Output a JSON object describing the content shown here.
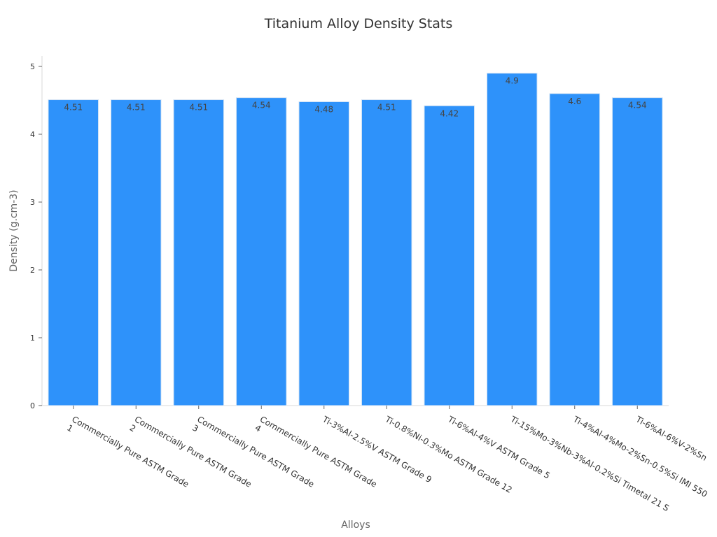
{
  "chart_data": {
    "type": "bar",
    "title": "Titanium Alloy Density Stats",
    "xlabel": "Alloys",
    "ylabel": "Density (g.cm-3)",
    "ylim": [
      0,
      5
    ],
    "yticks": [
      0,
      1,
      2,
      3,
      4,
      5
    ],
    "categories": [
      [
        "Commercially Pure ASTM Grade",
        "1"
      ],
      [
        "Commercially Pure ASTM Grade",
        "2"
      ],
      [
        "Commercially Pure ASTM Grade",
        "3"
      ],
      [
        "Commercially Pure ASTM Grade",
        "4"
      ],
      [
        "Ti-3%Al-2.5%V ASTM Grade 9"
      ],
      [
        "Ti-0.8%Ni-0.3%Mo ASTM Grade 12"
      ],
      [
        "Ti-6%Al-4%V ASTM Grade 5"
      ],
      [
        "Ti-15%Mo-3%Nb-3%Al-0.2%Si Timetal 21 S"
      ],
      [
        "Ti-4%Al-4%Mo-2%Sn-0.5%Si IMI 550"
      ],
      [
        "Ti-6%Al-6%V-2%Sn"
      ]
    ],
    "values": [
      4.51,
      4.51,
      4.51,
      4.54,
      4.48,
      4.51,
      4.42,
      4.9,
      4.6,
      4.54
    ],
    "grid": false,
    "colors": {
      "bar": "#2e92fa"
    }
  }
}
